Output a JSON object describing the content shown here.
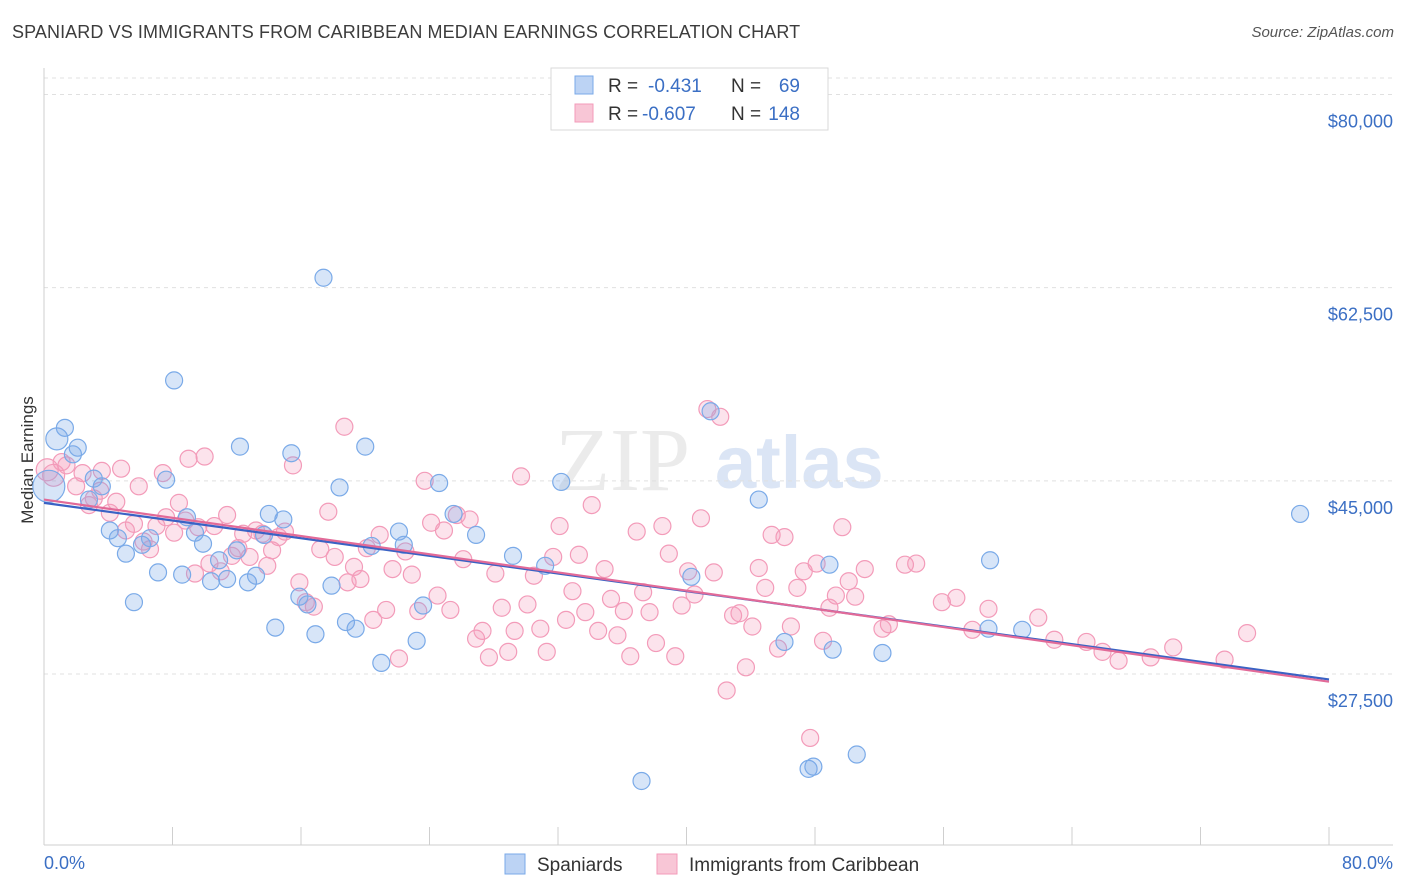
{
  "title": "SPANIARD VS IMMIGRANTS FROM CARIBBEAN MEDIAN EARNINGS CORRELATION CHART",
  "source": "Source: ZipAtlas.com",
  "watermark": {
    "zip": "ZIP",
    "atlas": "atlas"
  },
  "colors": {
    "blue": "#7aaae8",
    "pink": "#f39bb9",
    "blue_line": "#3a62c4",
    "pink_line": "#e26a98",
    "tick_text": "#3b6fc4"
  },
  "legend": {
    "items": [
      {
        "r_label": "R =",
        "r_value": "-0.431",
        "n_label": "N =",
        "n_value": "69"
      },
      {
        "r_label": "R =",
        "r_value": "-0.607",
        "n_label": "N =",
        "n_value": "148"
      }
    ]
  },
  "bottom_legend": [
    "Spaniards",
    "Immigrants from Caribbean"
  ],
  "chart_data": {
    "type": "scatter",
    "xlabel": "",
    "ylabel": "Median Earnings",
    "xlim": [
      0,
      80
    ],
    "ylim": [
      12000,
      81500
    ],
    "x_tick_labels": [
      "0.0%",
      "80.0%"
    ],
    "y_ticks": [
      27500,
      45000,
      62500,
      80000
    ],
    "y_tick_labels": [
      "$27,500",
      "$45,000",
      "$62,500",
      "$80,000"
    ],
    "grid": true,
    "legend_position": "top-center",
    "series": [
      {
        "name": "Spaniards",
        "trend": {
          "x": [
            0,
            80
          ],
          "y": [
            43000,
            27000
          ]
        },
        "points": [
          [
            0.3,
            44500
          ],
          [
            0.8,
            48800
          ],
          [
            1.3,
            49800
          ],
          [
            1.8,
            47400
          ],
          [
            2.1,
            48000
          ],
          [
            3.1,
            45200
          ],
          [
            2.8,
            43300
          ],
          [
            3.6,
            44500
          ],
          [
            4.1,
            40500
          ],
          [
            4.6,
            39800
          ],
          [
            5.1,
            38400
          ],
          [
            5.6,
            34000
          ],
          [
            6.1,
            39200
          ],
          [
            6.6,
            39800
          ],
          [
            7.1,
            36700
          ],
          [
            7.6,
            45100
          ],
          [
            8.1,
            54100
          ],
          [
            8.6,
            36500
          ],
          [
            8.9,
            41700
          ],
          [
            9.4,
            40300
          ],
          [
            9.9,
            39300
          ],
          [
            10.4,
            35900
          ],
          [
            10.9,
            37800
          ],
          [
            11.4,
            36100
          ],
          [
            12.0,
            38700
          ],
          [
            12.2,
            48100
          ],
          [
            12.7,
            35800
          ],
          [
            13.2,
            36400
          ],
          [
            13.7,
            40100
          ],
          [
            14.0,
            42000
          ],
          [
            14.4,
            31700
          ],
          [
            14.9,
            41500
          ],
          [
            15.4,
            47500
          ],
          [
            15.9,
            34500
          ],
          [
            16.4,
            33800
          ],
          [
            16.9,
            31100
          ],
          [
            17.4,
            63400
          ],
          [
            17.9,
            35500
          ],
          [
            18.4,
            44400
          ],
          [
            18.8,
            32200
          ],
          [
            19.4,
            31600
          ],
          [
            20.0,
            48100
          ],
          [
            20.4,
            39100
          ],
          [
            21.0,
            28500
          ],
          [
            22.1,
            40400
          ],
          [
            22.4,
            39200
          ],
          [
            23.2,
            30500
          ],
          [
            23.6,
            33700
          ],
          [
            24.6,
            44800
          ],
          [
            25.5,
            42000
          ],
          [
            26.9,
            40100
          ],
          [
            29.2,
            38200
          ],
          [
            31.2,
            37300
          ],
          [
            32.2,
            44900
          ],
          [
            37.2,
            17800
          ],
          [
            40.3,
            36300
          ],
          [
            41.5,
            51300
          ],
          [
            44.5,
            43300
          ],
          [
            46.1,
            30400
          ],
          [
            47.6,
            18900
          ],
          [
            47.9,
            19100
          ],
          [
            48.9,
            37400
          ],
          [
            49.1,
            29700
          ],
          [
            50.6,
            20200
          ],
          [
            52.2,
            29400
          ],
          [
            58.8,
            31600
          ],
          [
            58.9,
            37800
          ],
          [
            60.9,
            31500
          ],
          [
            78.2,
            42000
          ]
        ]
      },
      {
        "name": "Immigrants from Caribbean",
        "trend": {
          "x": [
            0,
            80
          ],
          "y": [
            43300,
            26800
          ]
        },
        "points": [
          [
            0.2,
            46000
          ],
          [
            0.6,
            45500
          ],
          [
            1.1,
            46700
          ],
          [
            1.4,
            46400
          ],
          [
            2.0,
            44500
          ],
          [
            2.4,
            45700
          ],
          [
            2.8,
            42800
          ],
          [
            3.1,
            43400
          ],
          [
            3.5,
            44100
          ],
          [
            3.6,
            45900
          ],
          [
            4.1,
            42100
          ],
          [
            4.5,
            43100
          ],
          [
            4.8,
            46100
          ],
          [
            5.1,
            40500
          ],
          [
            5.6,
            41100
          ],
          [
            5.9,
            44500
          ],
          [
            6.2,
            39500
          ],
          [
            6.6,
            38800
          ],
          [
            7.0,
            40900
          ],
          [
            7.4,
            45700
          ],
          [
            7.6,
            41700
          ],
          [
            8.1,
            40300
          ],
          [
            8.4,
            43000
          ],
          [
            8.8,
            41400
          ],
          [
            9.0,
            47000
          ],
          [
            9.4,
            36600
          ],
          [
            9.6,
            40800
          ],
          [
            10.0,
            47200
          ],
          [
            10.3,
            37500
          ],
          [
            10.6,
            40900
          ],
          [
            11.0,
            36800
          ],
          [
            11.4,
            41900
          ],
          [
            11.7,
            38200
          ],
          [
            12.1,
            38900
          ],
          [
            12.4,
            40200
          ],
          [
            12.8,
            38100
          ],
          [
            13.2,
            40500
          ],
          [
            13.6,
            40200
          ],
          [
            13.9,
            37300
          ],
          [
            14.2,
            38700
          ],
          [
            14.6,
            39900
          ],
          [
            15.0,
            40400
          ],
          [
            15.5,
            46400
          ],
          [
            15.9,
            35800
          ],
          [
            16.3,
            34000
          ],
          [
            16.8,
            33600
          ],
          [
            17.2,
            38800
          ],
          [
            17.7,
            42200
          ],
          [
            18.1,
            38100
          ],
          [
            18.7,
            49900
          ],
          [
            18.9,
            35800
          ],
          [
            19.3,
            37200
          ],
          [
            19.7,
            36100
          ],
          [
            20.1,
            38900
          ],
          [
            20.5,
            32400
          ],
          [
            20.9,
            40100
          ],
          [
            21.3,
            33300
          ],
          [
            21.7,
            37000
          ],
          [
            22.1,
            28900
          ],
          [
            22.5,
            38600
          ],
          [
            22.9,
            36500
          ],
          [
            23.3,
            33200
          ],
          [
            23.7,
            45000
          ],
          [
            24.1,
            41200
          ],
          [
            24.5,
            34600
          ],
          [
            24.9,
            40500
          ],
          [
            25.3,
            33300
          ],
          [
            25.7,
            41900
          ],
          [
            26.1,
            37900
          ],
          [
            26.5,
            41500
          ],
          [
            26.9,
            30700
          ],
          [
            27.3,
            31400
          ],
          [
            27.7,
            29000
          ],
          [
            28.1,
            36600
          ],
          [
            28.5,
            33500
          ],
          [
            28.9,
            29500
          ],
          [
            29.3,
            31400
          ],
          [
            29.7,
            45400
          ],
          [
            30.1,
            33800
          ],
          [
            30.5,
            36400
          ],
          [
            30.9,
            31600
          ],
          [
            31.3,
            29500
          ],
          [
            31.7,
            38100
          ],
          [
            32.1,
            40900
          ],
          [
            32.5,
            32400
          ],
          [
            32.9,
            35000
          ],
          [
            33.3,
            38300
          ],
          [
            33.7,
            33100
          ],
          [
            34.1,
            42800
          ],
          [
            34.5,
            31400
          ],
          [
            34.9,
            37000
          ],
          [
            35.3,
            34300
          ],
          [
            35.7,
            31000
          ],
          [
            36.1,
            33200
          ],
          [
            36.5,
            29100
          ],
          [
            36.9,
            40400
          ],
          [
            37.3,
            34900
          ],
          [
            37.7,
            33100
          ],
          [
            38.1,
            30300
          ],
          [
            38.5,
            40900
          ],
          [
            38.9,
            38400
          ],
          [
            39.3,
            29100
          ],
          [
            39.7,
            33700
          ],
          [
            40.1,
            36800
          ],
          [
            40.5,
            34700
          ],
          [
            40.9,
            41600
          ],
          [
            41.3,
            51500
          ],
          [
            41.7,
            36700
          ],
          [
            42.1,
            50800
          ],
          [
            42.5,
            26000
          ],
          [
            42.9,
            32800
          ],
          [
            43.3,
            33000
          ],
          [
            43.7,
            28100
          ],
          [
            44.1,
            31800
          ],
          [
            44.5,
            37100
          ],
          [
            44.9,
            35300
          ],
          [
            45.3,
            40100
          ],
          [
            45.7,
            29800
          ],
          [
            46.1,
            39900
          ],
          [
            46.5,
            31800
          ],
          [
            46.9,
            35300
          ],
          [
            47.3,
            36800
          ],
          [
            47.7,
            21700
          ],
          [
            48.1,
            37500
          ],
          [
            48.5,
            30500
          ],
          [
            48.9,
            33500
          ],
          [
            49.3,
            34600
          ],
          [
            49.7,
            40800
          ],
          [
            50.1,
            35900
          ],
          [
            50.5,
            34500
          ],
          [
            51.1,
            37000
          ],
          [
            52.2,
            31600
          ],
          [
            52.6,
            32000
          ],
          [
            53.6,
            37400
          ],
          [
            54.3,
            37500
          ],
          [
            55.9,
            34000
          ],
          [
            56.8,
            34400
          ],
          [
            57.8,
            31500
          ],
          [
            58.8,
            33400
          ],
          [
            61.9,
            32600
          ],
          [
            62.9,
            30600
          ],
          [
            64.9,
            30400
          ],
          [
            65.9,
            29500
          ],
          [
            66.9,
            28700
          ],
          [
            68.9,
            29000
          ],
          [
            70.3,
            29900
          ],
          [
            73.5,
            28800
          ],
          [
            74.9,
            31200
          ]
        ]
      }
    ]
  }
}
